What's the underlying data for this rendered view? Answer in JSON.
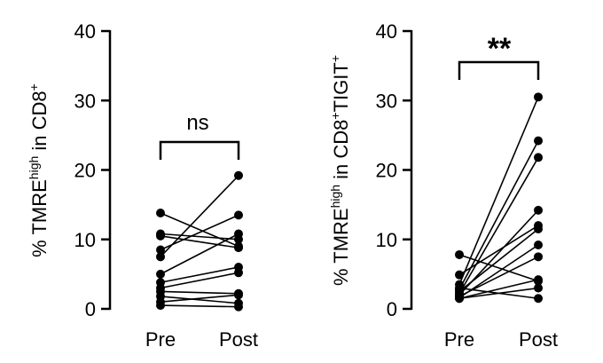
{
  "chart_data": [
    {
      "type": "paired-scatter",
      "ylabel": {
        "p1": "% TMRE",
        "s1": "high",
        "p2": " in CD8",
        "s2": "+",
        "p3": "",
        "s3": ""
      },
      "categories": [
        "Pre",
        "Post"
      ],
      "ylim": [
        0,
        40
      ],
      "yticks": [
        0,
        10,
        20,
        30,
        40
      ],
      "significance": "ns",
      "sig_style": "ns",
      "pairs": [
        [
          13.8,
          9.0
        ],
        [
          10.8,
          10.0
        ],
        [
          10.5,
          8.8
        ],
        [
          8.5,
          13.5
        ],
        [
          7.5,
          19.2
        ],
        [
          5.0,
          10.8
        ],
        [
          3.8,
          6.0
        ],
        [
          3.0,
          5.2
        ],
        [
          2.5,
          2.2
        ],
        [
          1.8,
          0.8
        ],
        [
          1.0,
          2.0
        ],
        [
          0.5,
          0.3
        ]
      ]
    },
    {
      "type": "paired-scatter",
      "ylabel": {
        "p1": "% TMRE",
        "s1": "high",
        "p2": " in CD8",
        "s2": "+",
        "p3": "TIGIT",
        "s3": "+"
      },
      "categories": [
        "Pre",
        "Post"
      ],
      "ylim": [
        0,
        40
      ],
      "yticks": [
        0,
        10,
        20,
        30,
        40
      ],
      "significance": "**",
      "sig_style": "star",
      "pairs": [
        [
          7.8,
          4.0
        ],
        [
          4.9,
          12.0
        ],
        [
          3.5,
          30.5
        ],
        [
          3.0,
          1.5
        ],
        [
          2.8,
          24.2
        ],
        [
          2.5,
          11.5
        ],
        [
          2.2,
          21.8
        ],
        [
          2.0,
          14.2
        ],
        [
          1.8,
          7.5
        ],
        [
          1.6,
          9.2
        ],
        [
          1.5,
          3.0
        ],
        [
          1.5,
          4.2
        ]
      ]
    }
  ]
}
